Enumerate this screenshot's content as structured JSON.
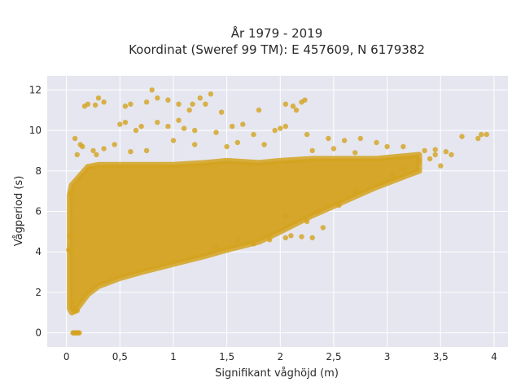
{
  "chart_data": {
    "type": "scatter",
    "title_line1": "År 1979 - 2019",
    "title_line2": "Koordinat (Sweref 99 TM): E 457609, N 6179382",
    "xlabel": "Signifikant våghöjd (m)",
    "ylabel": "Vågperiod (s)",
    "xlim": [
      -0.18,
      4.13
    ],
    "ylim": [
      -0.7,
      12.7
    ],
    "x_ticks": [
      0,
      0.5,
      1,
      1.5,
      2,
      2.5,
      3,
      3.5,
      4
    ],
    "x_tick_labels": [
      "0",
      "0,5",
      "1",
      "1,5",
      "2",
      "2,5",
      "3",
      "3,5",
      "4"
    ],
    "y_ticks": [
      0,
      2,
      4,
      6,
      8,
      10,
      12
    ],
    "y_tick_labels": [
      "0",
      "2",
      "4",
      "6",
      "8",
      "10",
      "12"
    ],
    "grid": true,
    "colors": {
      "marker": "#d4a21f",
      "plot_bg": "#e5e6ef",
      "grid": "#ffffff"
    },
    "series": [
      {
        "density_envelope": {
          "x": [
            0.03,
            0.05,
            0.1,
            0.2,
            0.3,
            0.5,
            0.7,
            1.0,
            1.3,
            1.5,
            1.8,
            2.0,
            2.3,
            2.6,
            2.9,
            3.1,
            3.3
          ],
          "y_min": [
            1.2,
            1.0,
            1.2,
            1.9,
            2.3,
            2.7,
            3.0,
            3.4,
            3.8,
            4.1,
            4.5,
            5.0,
            5.8,
            6.5,
            7.2,
            7.6,
            8.0
          ],
          "y_max": [
            6.8,
            7.3,
            7.6,
            8.2,
            8.3,
            8.3,
            8.3,
            8.3,
            8.4,
            8.5,
            8.4,
            8.5,
            8.6,
            8.6,
            8.6,
            8.7,
            8.8
          ]
        },
        "points": [
          [
            0.06,
            0.0
          ],
          [
            0.07,
            0.0
          ],
          [
            0.08,
            0.0
          ],
          [
            0.09,
            0.0
          ],
          [
            0.1,
            0.0
          ],
          [
            0.11,
            0.0
          ],
          [
            0.12,
            0.0
          ],
          [
            0.05,
            1.5
          ],
          [
            0.06,
            1.2
          ],
          [
            0.08,
            1.05
          ],
          [
            0.1,
            1.1
          ],
          [
            0.04,
            6.9
          ],
          [
            0.03,
            4.8
          ],
          [
            0.02,
            4.1
          ],
          [
            0.17,
            11.2
          ],
          [
            0.2,
            11.3
          ],
          [
            0.27,
            11.25
          ],
          [
            0.3,
            11.6
          ],
          [
            0.35,
            11.4
          ],
          [
            0.55,
            11.2
          ],
          [
            0.6,
            11.3
          ],
          [
            0.75,
            11.4
          ],
          [
            0.8,
            12.0
          ],
          [
            0.85,
            11.6
          ],
          [
            0.95,
            11.5
          ],
          [
            1.05,
            11.3
          ],
          [
            1.15,
            11.0
          ],
          [
            1.18,
            11.3
          ],
          [
            1.25,
            11.6
          ],
          [
            1.35,
            11.8
          ],
          [
            1.3,
            11.3
          ],
          [
            1.45,
            10.9
          ],
          [
            1.8,
            11.0
          ],
          [
            2.05,
            11.3
          ],
          [
            2.12,
            11.2
          ],
          [
            2.2,
            11.4
          ],
          [
            2.23,
            11.5
          ],
          [
            2.15,
            11.0
          ],
          [
            0.5,
            10.3
          ],
          [
            0.55,
            10.4
          ],
          [
            0.65,
            10.0
          ],
          [
            0.7,
            10.2
          ],
          [
            0.85,
            10.4
          ],
          [
            0.95,
            10.2
          ],
          [
            1.05,
            10.5
          ],
          [
            1.1,
            10.1
          ],
          [
            1.2,
            10.0
          ],
          [
            1.4,
            9.9
          ],
          [
            1.55,
            10.2
          ],
          [
            1.65,
            10.3
          ],
          [
            1.75,
            9.8
          ],
          [
            1.95,
            10.0
          ],
          [
            2.0,
            10.1
          ],
          [
            2.05,
            10.2
          ],
          [
            2.25,
            9.8
          ],
          [
            2.45,
            9.6
          ],
          [
            2.6,
            9.5
          ],
          [
            2.75,
            9.6
          ],
          [
            2.9,
            9.4
          ],
          [
            3.0,
            9.2
          ],
          [
            3.15,
            9.2
          ],
          [
            3.35,
            9.0
          ],
          [
            3.45,
            9.05
          ],
          [
            3.55,
            8.95
          ],
          [
            3.7,
            9.7
          ],
          [
            3.88,
            9.8
          ],
          [
            3.93,
            9.8
          ],
          [
            3.85,
            9.6
          ],
          [
            3.5,
            8.25
          ],
          [
            3.3,
            8.5
          ],
          [
            3.45,
            8.8
          ],
          [
            3.6,
            8.8
          ],
          [
            3.4,
            8.6
          ],
          [
            1.5,
            9.2
          ],
          [
            1.6,
            9.4
          ],
          [
            1.85,
            9.3
          ],
          [
            2.3,
            9.0
          ],
          [
            2.5,
            9.1
          ],
          [
            2.7,
            8.9
          ],
          [
            2.4,
            5.2
          ],
          [
            2.25,
            5.5
          ],
          [
            2.35,
            6.0
          ],
          [
            1.4,
            4.2
          ],
          [
            1.6,
            4.6
          ],
          [
            1.75,
            4.4
          ],
          [
            1.9,
            4.6
          ],
          [
            2.05,
            4.7
          ],
          [
            2.1,
            4.8
          ],
          [
            2.2,
            4.75
          ],
          [
            2.3,
            4.7
          ],
          [
            0.15,
            9.2
          ],
          [
            0.25,
            9.0
          ],
          [
            0.28,
            8.8
          ],
          [
            0.1,
            8.8
          ],
          [
            0.08,
            9.6
          ],
          [
            0.13,
            9.3
          ],
          [
            0.35,
            9.1
          ],
          [
            0.45,
            9.3
          ],
          [
            0.6,
            8.95
          ],
          [
            0.75,
            9.0
          ],
          [
            1.0,
            9.5
          ],
          [
            1.2,
            9.3
          ],
          [
            2.05,
            5.8
          ],
          [
            2.55,
            6.3
          ],
          [
            2.7,
            7.0
          ],
          [
            2.95,
            7.4
          ],
          [
            3.15,
            8.1
          ],
          [
            3.05,
            7.8
          ]
        ]
      }
    ]
  }
}
